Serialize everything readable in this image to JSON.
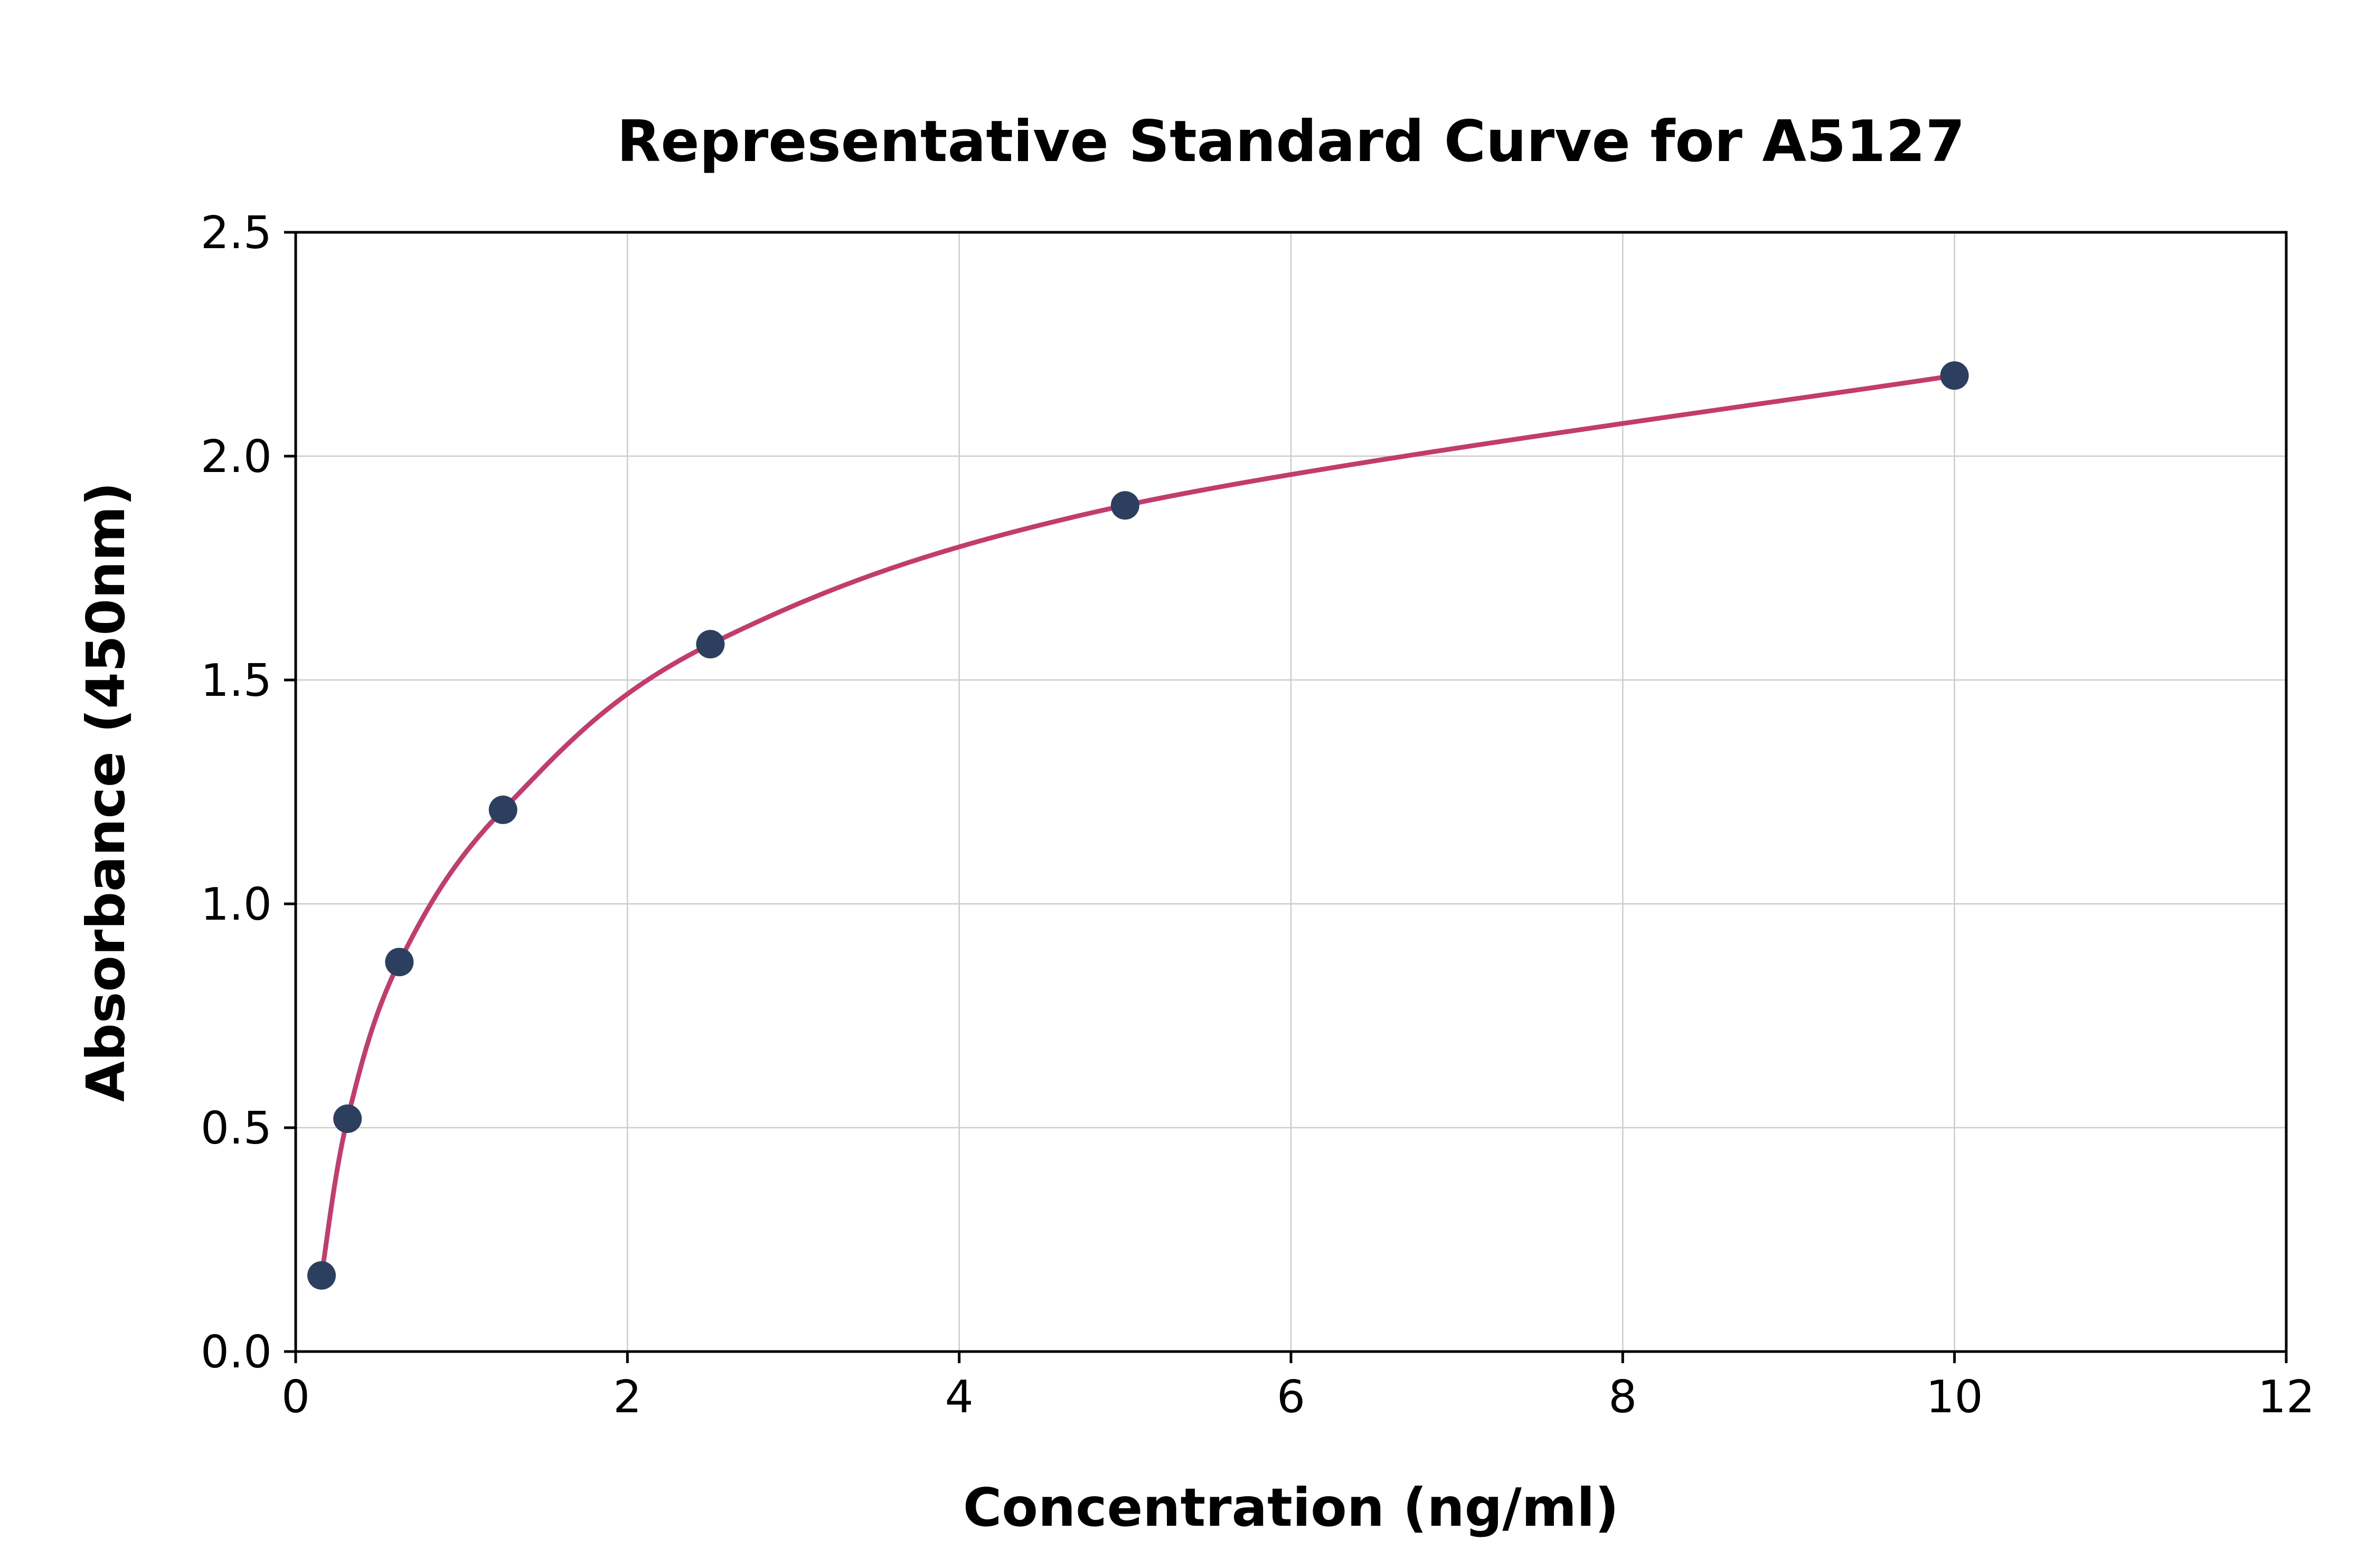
{
  "chart_data": {
    "type": "scatter",
    "title": "Representative Standard Curve for A5127",
    "xlabel": "Concentration (ng/ml)",
    "ylabel": "Absorbance (450nm)",
    "xlim": [
      0,
      12
    ],
    "ylim": [
      0,
      2.5
    ],
    "xticks": [
      0,
      2,
      4,
      6,
      8,
      10,
      12
    ],
    "yticks": [
      0.0,
      0.5,
      1.0,
      1.5,
      2.0,
      2.5
    ],
    "grid": true,
    "legend": "none",
    "points": [
      {
        "x": 0.156,
        "y": 0.17
      },
      {
        "x": 0.3125,
        "y": 0.52
      },
      {
        "x": 0.625,
        "y": 0.87
      },
      {
        "x": 1.25,
        "y": 1.21
      },
      {
        "x": 2.5,
        "y": 1.58
      },
      {
        "x": 5.0,
        "y": 1.89
      },
      {
        "x": 10.0,
        "y": 2.18
      }
    ],
    "curve_color": "#c23c6d",
    "point_color": "#2d3f5e",
    "grid_color": "#cccccc",
    "spine_color": "#000000"
  }
}
